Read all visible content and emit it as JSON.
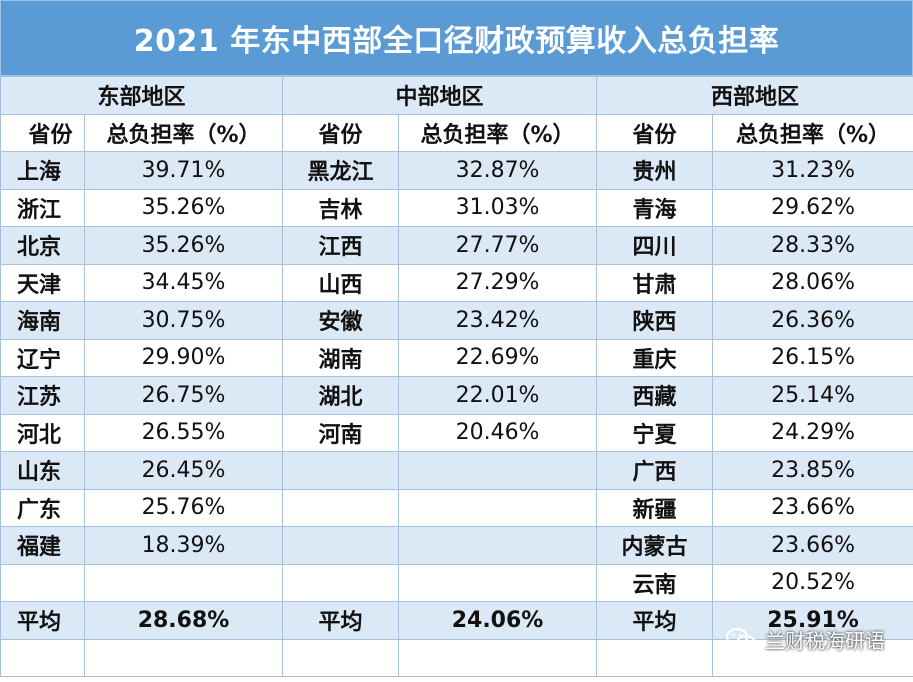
{
  "title": "2021 年东中西部全口径财政预算收入总负担率",
  "regions": [
    "东部地区",
    "中部地区",
    "西部地区"
  ],
  "col_headers": {
    "province": "省份",
    "rate": "总负担率（%）"
  },
  "rows": [
    [
      "上海",
      "39.71%",
      "黑龙江",
      "32.87%",
      "贵州",
      "31.23%"
    ],
    [
      "浙江",
      "35.26%",
      "吉林",
      "31.03%",
      "青海",
      "29.62%"
    ],
    [
      "北京",
      "35.26%",
      "江西",
      "27.77%",
      "四川",
      "28.33%"
    ],
    [
      "天津",
      "34.45%",
      "山西",
      "27.29%",
      "甘肃",
      "28.06%"
    ],
    [
      "海南",
      "30.75%",
      "安徽",
      "23.42%",
      "陕西",
      "26.36%"
    ],
    [
      "辽宁",
      "29.90%",
      "湖南",
      "22.69%",
      "重庆",
      "26.15%"
    ],
    [
      "江苏",
      "26.75%",
      "湖北",
      "22.01%",
      "西藏",
      "25.14%"
    ],
    [
      "河北",
      "26.55%",
      "河南",
      "20.46%",
      "宁夏",
      "24.29%"
    ],
    [
      "山东",
      "26.45%",
      "",
      "",
      "广西",
      "23.85%"
    ],
    [
      "广东",
      "25.76%",
      "",
      "",
      "新疆",
      "23.66%"
    ],
    [
      "福建",
      "18.39%",
      "",
      "",
      "内蒙古",
      "23.66%"
    ],
    [
      "",
      "",
      "",
      "",
      "云南",
      "20.52%"
    ]
  ],
  "average": {
    "label": "平均",
    "east": "28.68%",
    "central": "24.06%",
    "west": "25.91%"
  },
  "watermark": "兰财税海研语",
  "colors": {
    "header_bg": "#5b9bd5",
    "band": "#dbe8f5",
    "border": "#a6c1dc"
  }
}
